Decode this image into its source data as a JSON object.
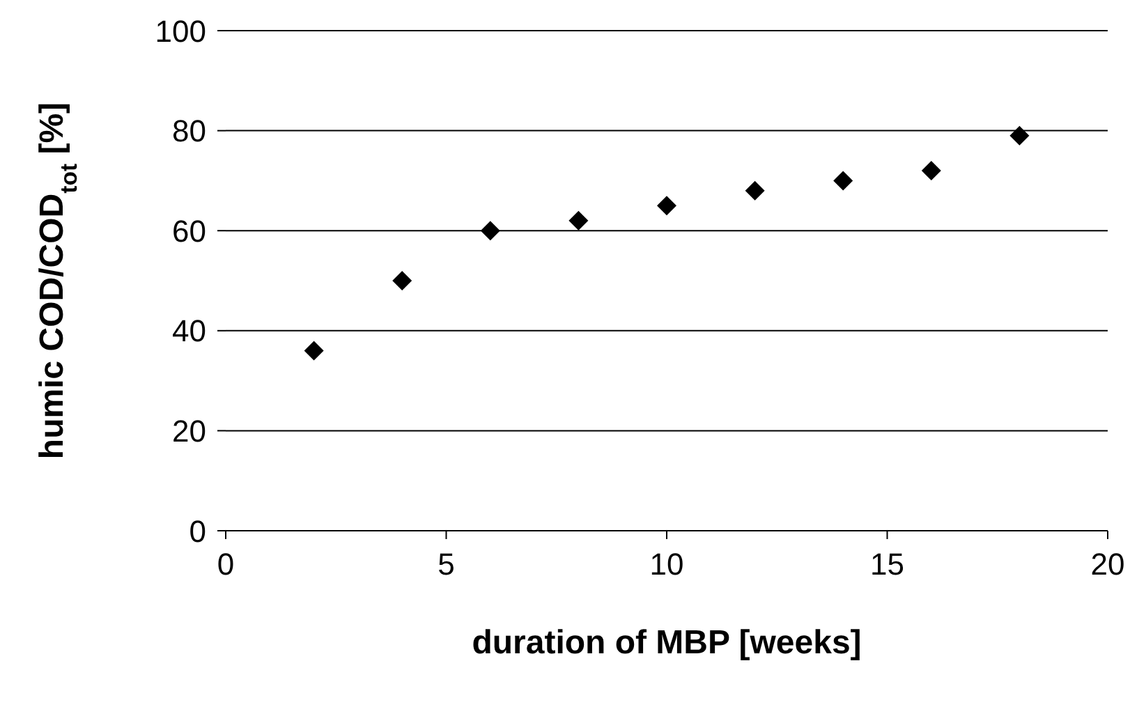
{
  "chart_data": {
    "type": "scatter",
    "xlabel": "duration of MBP [weeks]",
    "ylabel": "humic COD/COD$_{tot}$ [%]",
    "x": [
      2,
      4,
      6,
      8,
      10,
      12,
      14,
      16,
      18
    ],
    "series": [
      {
        "color": "#000000",
        "values": [
          36,
          50,
          60,
          62,
          65,
          68,
          70,
          72,
          79
        ]
      }
    ],
    "xlim": [
      0,
      20
    ],
    "xticks": [
      0,
      5,
      10,
      15,
      20
    ],
    "ylim": [
      0,
      100
    ],
    "yticks": [
      0,
      20,
      40,
      60,
      80,
      100
    ],
    "grid": "y",
    "marker": "diamond",
    "legend": false
  }
}
